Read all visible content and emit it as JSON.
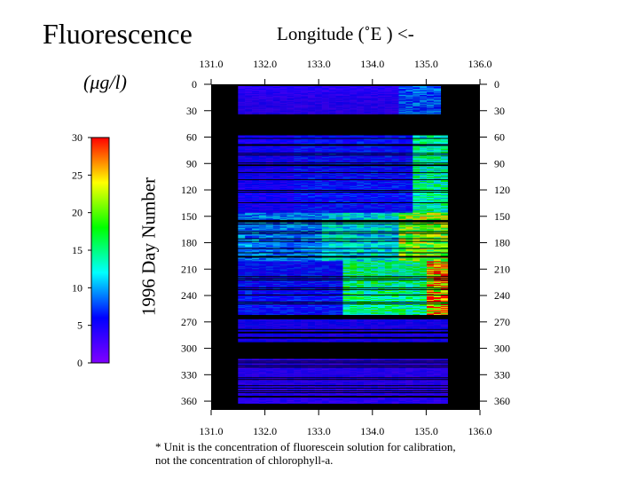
{
  "title": "Fluorescence",
  "unit_label": "(μg/l)",
  "footnote": [
    "* Unit is the concentration of fluorescein solution for calibration,",
    "not the concentration of chlorophyll-a."
  ],
  "chart_data": {
    "type": "heatmap",
    "title": "Fluorescence",
    "xlabel": "Longitude (˚E ) <-",
    "ylabel": "1996 Day Number",
    "colorbar_label": "(μg/l)",
    "xlim": [
      131.0,
      136.0
    ],
    "ylim": [
      0,
      370
    ],
    "xticks": [
      "131.0",
      "132.0",
      "133.0",
      "134.0",
      "135.0",
      "136.0"
    ],
    "yticks": [
      "0",
      "30",
      "60",
      "90",
      "120",
      "150",
      "180",
      "210",
      "240",
      "270",
      "300",
      "330",
      "360"
    ],
    "colorbar": {
      "min": 0,
      "max": 30,
      "ticks": [
        "0",
        "5",
        "10",
        "15",
        "20",
        "25",
        "30"
      ],
      "colors": [
        "#8000ff",
        "#0000ff",
        "#00ffff",
        "#00ff00",
        "#ffff00",
        "#ff0000"
      ]
    },
    "no_data_color": "#000000",
    "track_longitude_range": [
      131.5,
      135.4
    ],
    "observed_day_ranges": [
      [
        2,
        34
      ],
      [
        58,
        262
      ],
      [
        266,
        292
      ],
      [
        312,
        362
      ]
    ],
    "zones": [
      {
        "x": [
          131.5,
          134.5
        ],
        "y": [
          0,
          35
        ],
        "value": 4
      },
      {
        "x": [
          134.5,
          135.3
        ],
        "y": [
          0,
          35
        ],
        "value": 8
      },
      {
        "x": [
          131.5,
          132.5
        ],
        "y": [
          58,
          145
        ],
        "value": 5
      },
      {
        "x": [
          132.5,
          134.8
        ],
        "y": [
          58,
          145
        ],
        "value": 6
      },
      {
        "x": [
          134.8,
          135.4
        ],
        "y": [
          58,
          145
        ],
        "value": 14
      },
      {
        "x": [
          131.5,
          133.0
        ],
        "y": [
          145,
          200
        ],
        "value": 9
      },
      {
        "x": [
          133.0,
          134.5
        ],
        "y": [
          145,
          200
        ],
        "value": 12
      },
      {
        "x": [
          134.5,
          135.4
        ],
        "y": [
          145,
          200
        ],
        "value": 20
      },
      {
        "x": [
          131.5,
          133.5
        ],
        "y": [
          200,
          262
        ],
        "value": 6
      },
      {
        "x": [
          133.5,
          135.0
        ],
        "y": [
          200,
          262
        ],
        "value": 15
      },
      {
        "x": [
          135.0,
          135.4
        ],
        "y": [
          200,
          262
        ],
        "value": 26
      },
      {
        "x": [
          131.5,
          135.4
        ],
        "y": [
          266,
          292
        ],
        "value": 5
      },
      {
        "x": [
          131.5,
          135.4
        ],
        "y": [
          312,
          362
        ],
        "value": 4
      }
    ]
  }
}
